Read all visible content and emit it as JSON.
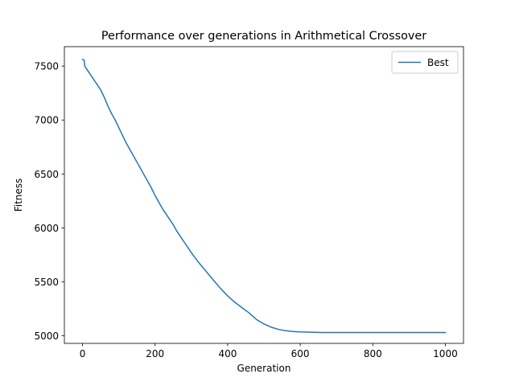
{
  "chart_data": {
    "type": "line",
    "title": "Performance over generations in Arithmetical Crossover",
    "xlabel": "Generation",
    "ylabel": "Fitness",
    "xlim": [
      -50,
      1050
    ],
    "ylim": [
      4930,
      7680
    ],
    "xticks": [
      0,
      200,
      400,
      600,
      800,
      1000
    ],
    "yticks": [
      5000,
      5500,
      6000,
      6500,
      7000,
      7500
    ],
    "grid": false,
    "legend": "top-right",
    "colors": {
      "series": "#1f77b4",
      "axes": "#000000",
      "legend_border": "#cccccc"
    },
    "series": [
      {
        "name": "Best",
        "x": [
          0,
          3,
          5,
          6,
          10,
          20,
          30,
          40,
          50,
          60,
          70,
          80,
          90,
          100,
          110,
          120,
          130,
          140,
          150,
          160,
          170,
          180,
          190,
          200,
          210,
          220,
          230,
          240,
          250,
          260,
          270,
          280,
          290,
          300,
          320,
          340,
          360,
          380,
          400,
          420,
          440,
          460,
          480,
          500,
          520,
          540,
          560,
          580,
          600,
          620,
          640,
          660,
          700,
          800,
          900,
          1000
        ],
        "values": [
          7560,
          7560,
          7545,
          7500,
          7480,
          7430,
          7380,
          7330,
          7280,
          7210,
          7130,
          7060,
          7000,
          6930,
          6860,
          6790,
          6730,
          6670,
          6610,
          6550,
          6490,
          6430,
          6370,
          6300,
          6240,
          6180,
          6130,
          6080,
          6030,
          5970,
          5920,
          5870,
          5820,
          5770,
          5680,
          5600,
          5520,
          5440,
          5370,
          5310,
          5260,
          5210,
          5150,
          5110,
          5080,
          5060,
          5047,
          5040,
          5036,
          5034,
          5032,
          5031,
          5031,
          5031,
          5031,
          5031
        ]
      }
    ]
  }
}
